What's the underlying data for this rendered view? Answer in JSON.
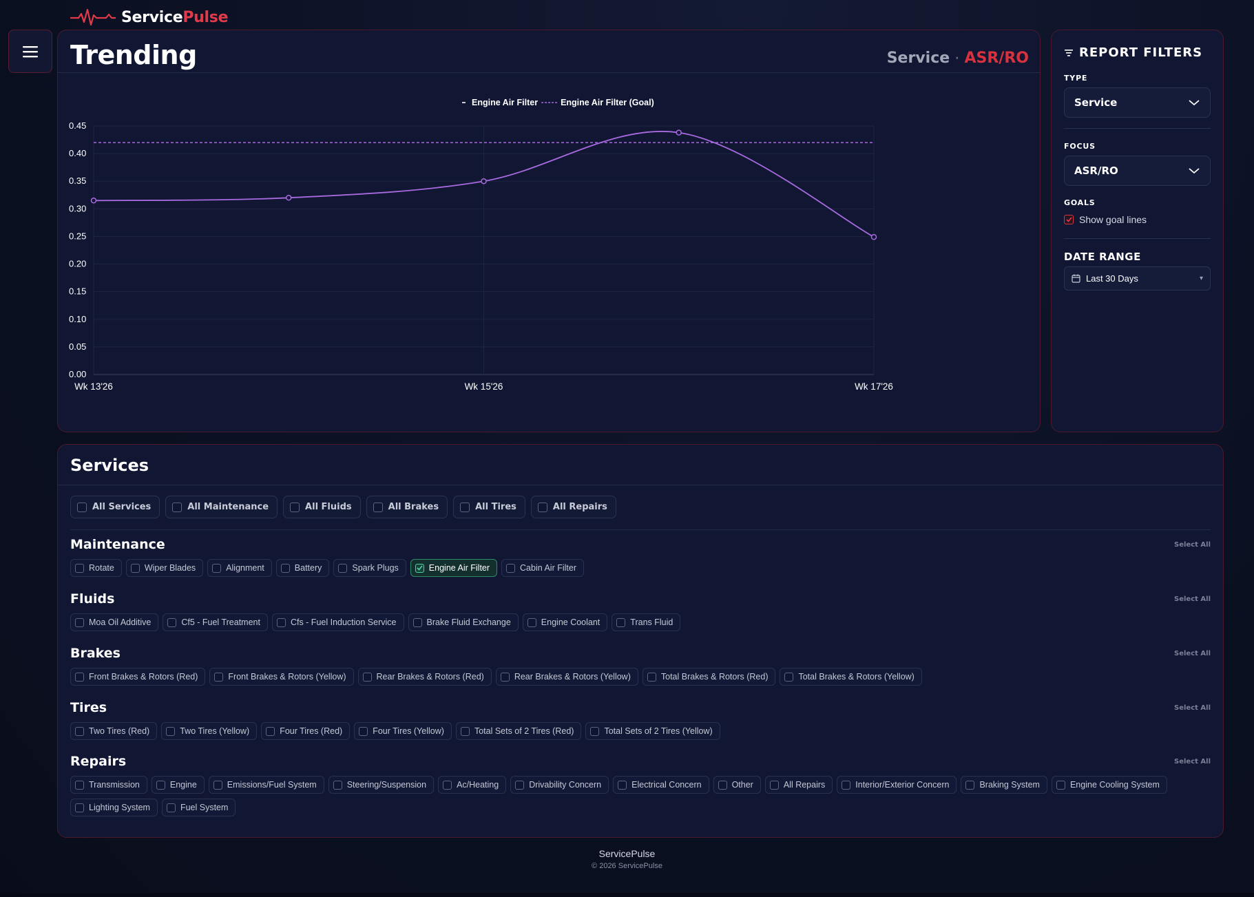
{
  "brand": {
    "part1": "Service",
    "part2": "Pulse"
  },
  "trend": {
    "title": "Trending",
    "type_label": "Service",
    "separator": "·",
    "focus_label": "ASR/RO"
  },
  "filters": {
    "header": "REPORT FILTERS",
    "type_label": "TYPE",
    "type_value": "Service",
    "focus_label": "FOCUS",
    "focus_value": "ASR/RO",
    "goals_label": "GOALS",
    "goals_checkbox_label": "Show goal lines",
    "goals_checked": true,
    "date_range_label": "DATE RANGE",
    "date_range_value": "Last 30 Days"
  },
  "chart_data": {
    "type": "line",
    "x": [
      "Wk 13'26",
      "",
      "Wk 15'26",
      "",
      "Wk 17'26"
    ],
    "x_tick_labels": [
      "Wk 13'26",
      "Wk 15'26",
      "Wk 17'26"
    ],
    "series": [
      {
        "name": "Engine Air Filter",
        "values": [
          0.315,
          0.32,
          0.35,
          0.438,
          0.249
        ],
        "color": "#a86ae0"
      },
      {
        "name": "Engine Air Filter (Goal)",
        "values": [
          0.42,
          0.42,
          0.42,
          0.42,
          0.42
        ],
        "color": "#a86ae0",
        "dashed": true
      }
    ],
    "ylim": [
      0,
      0.45
    ],
    "y_ticks": [
      "0.00",
      "0.05",
      "0.10",
      "0.15",
      "0.20",
      "0.25",
      "0.30",
      "0.35",
      "0.40",
      "0.45"
    ],
    "legend": "top-center",
    "grid": true
  },
  "services": {
    "title": "Services",
    "all_buttons": [
      "All Services",
      "All Maintenance",
      "All Fluids",
      "All Brakes",
      "All Tires",
      "All Repairs"
    ],
    "select_all_label": "Select All",
    "categories": [
      {
        "title": "Maintenance",
        "items": [
          "Rotate",
          "Wiper Blades",
          "Alignment",
          "Battery",
          "Spark Plugs",
          "Engine Air Filter",
          "Cabin Air Filter"
        ],
        "checked": [
          "Engine Air Filter"
        ]
      },
      {
        "title": "Fluids",
        "items": [
          "Moa Oil Additive",
          "Cf5 - Fuel Treatment",
          "Cfs - Fuel Induction Service",
          "Brake Fluid Exchange",
          "Engine Coolant",
          "Trans Fluid"
        ],
        "checked": []
      },
      {
        "title": "Brakes",
        "items": [
          "Front Brakes & Rotors (Red)",
          "Front Brakes & Rotors (Yellow)",
          "Rear Brakes & Rotors (Red)",
          "Rear Brakes & Rotors (Yellow)",
          "Total Brakes & Rotors (Red)",
          "Total Brakes & Rotors (Yellow)"
        ],
        "checked": []
      },
      {
        "title": "Tires",
        "items": [
          "Two Tires (Red)",
          "Two Tires (Yellow)",
          "Four Tires (Red)",
          "Four Tires (Yellow)",
          "Total Sets of 2 Tires (Red)",
          "Total Sets of 2 Tires (Yellow)"
        ],
        "checked": []
      },
      {
        "title": "Repairs",
        "items": [
          "Transmission",
          "Engine",
          "Emissions/Fuel System",
          "Steering/Suspension",
          "Ac/Heating",
          "Drivability Concern",
          "Electrical Concern",
          "Other",
          "All Repairs",
          "Interior/Exterior Concern",
          "Braking System",
          "Engine Cooling System",
          "Lighting System",
          "Fuel System"
        ],
        "checked": []
      }
    ]
  },
  "footer": {
    "name": "ServicePulse",
    "copyright": "© 2026 ServicePulse"
  },
  "colors": {
    "accent_red": "#e23a4a",
    "line_purple": "#a86ae0",
    "checked_green": "#4fd6a0",
    "card_bg": "#111733"
  }
}
